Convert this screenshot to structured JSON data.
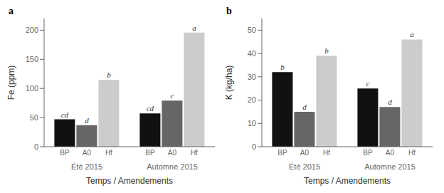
{
  "chart_data": [
    {
      "type": "bar",
      "title": "a",
      "xlabel": "Temps / Amendements",
      "ylabel": "Fe (ppm)",
      "categories": [
        "Été 2015",
        "Automne 2015"
      ],
      "series": [
        {
          "name": "BP",
          "color": "#111111",
          "values": [
            47,
            57
          ],
          "annotations": [
            "cd",
            "cd"
          ]
        },
        {
          "name": "A0",
          "color": "#666666",
          "values": [
            37,
            79
          ],
          "annotations": [
            "d",
            "c"
          ]
        },
        {
          "name": "Hf",
          "color": "#cccccc",
          "values": [
            115,
            196
          ],
          "annotations": [
            "b",
            "a"
          ]
        }
      ],
      "ylim": [
        0,
        220
      ],
      "yticks": [
        0,
        50,
        100,
        150,
        200
      ],
      "grid": false
    },
    {
      "type": "bar",
      "title": "b",
      "xlabel": "Temps / Amendements",
      "ylabel": "K (kg/ha)",
      "categories": [
        "Été 2015",
        "Automne 2015"
      ],
      "series": [
        {
          "name": "BP",
          "color": "#111111",
          "values": [
            32,
            25
          ],
          "annotations": [
            "b",
            "c"
          ]
        },
        {
          "name": "A0",
          "color": "#666666",
          "values": [
            15,
            17
          ],
          "annotations": [
            "d",
            "d"
          ]
        },
        {
          "name": "Hf",
          "color": "#cccccc",
          "values": [
            39,
            46
          ],
          "annotations": [
            "b",
            "a"
          ]
        }
      ],
      "ylim": [
        0,
        55
      ],
      "yticks": [
        0,
        10,
        20,
        30,
        40,
        50
      ],
      "grid": false
    }
  ]
}
